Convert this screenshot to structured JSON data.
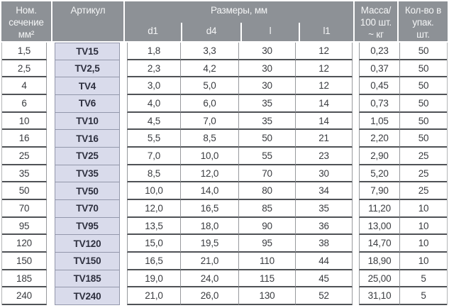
{
  "header": {
    "col_section": "Ном.\nсечение\nмм²",
    "col_article": "Артикул",
    "col_dimensions": "Размеры, мм",
    "sub_d1": "d1",
    "sub_d4": "d4",
    "sub_l": "l",
    "sub_l1": "l1",
    "col_mass": "Масса/\n100 шт.\n~ кг",
    "col_qty": "Кол-во в\nупак.\nшт."
  },
  "colors": {
    "header_bg": "#8d9196",
    "article_column_bg": "#d9dbeb",
    "row_line": "#4f5256"
  },
  "chart_data": {
    "type": "table",
    "columns": [
      "Ном. сечение мм²",
      "Артикул",
      "d1",
      "d4",
      "l",
      "l1",
      "Масса/100 шт. ~ кг",
      "Кол-во в упак. шт."
    ]
  },
  "rows": [
    {
      "section": "1,5",
      "article": "TV15",
      "d1": "1,8",
      "d4": "3,3",
      "l": "30",
      "l1": "12",
      "mass": "0,23",
      "qty": "50"
    },
    {
      "section": "2,5",
      "article": "TV2,5",
      "d1": "2,3",
      "d4": "4,2",
      "l": "30",
      "l1": "12",
      "mass": "0,37",
      "qty": "50"
    },
    {
      "section": "4",
      "article": "TV4",
      "d1": "3,0",
      "d4": "5,0",
      "l": "30",
      "l1": "12",
      "mass": "0,45",
      "qty": "50"
    },
    {
      "section": "6",
      "article": "TV6",
      "d1": "4,0",
      "d4": "6,0",
      "l": "35",
      "l1": "14",
      "mass": "0,73",
      "qty": "50"
    },
    {
      "section": "10",
      "article": "TV10",
      "d1": "4,5",
      "d4": "7,0",
      "l": "35",
      "l1": "14",
      "mass": "1,05",
      "qty": "50"
    },
    {
      "section": "16",
      "article": "TV16",
      "d1": "5,5",
      "d4": "8,5",
      "l": "50",
      "l1": "21",
      "mass": "2,20",
      "qty": "50"
    },
    {
      "section": "25",
      "article": "TV25",
      "d1": "7,0",
      "d4": "10,0",
      "l": "55",
      "l1": "23",
      "mass": "2,90",
      "qty": "25"
    },
    {
      "section": "35",
      "article": "TV35",
      "d1": "8,5",
      "d4": "12,0",
      "l": "70",
      "l1": "30",
      "mass": "5,20",
      "qty": "25"
    },
    {
      "section": "50",
      "article": "TV50",
      "d1": "10,0",
      "d4": "14,0",
      "l": "80",
      "l1": "34",
      "mass": "7,90",
      "qty": "25"
    },
    {
      "section": "70",
      "article": "TV70",
      "d1": "12,0",
      "d4": "16,5",
      "l": "85",
      "l1": "35",
      "mass": "11,20",
      "qty": "10"
    },
    {
      "section": "95",
      "article": "TV95",
      "d1": "13,5",
      "d4": "18,0",
      "l": "90",
      "l1": "36",
      "mass": "13,00",
      "qty": "10"
    },
    {
      "section": "120",
      "article": "TV120",
      "d1": "15,0",
      "d4": "19,5",
      "l": "95",
      "l1": "38",
      "mass": "14,70",
      "qty": "10"
    },
    {
      "section": "150",
      "article": "TV150",
      "d1": "16,5",
      "d4": "21,0",
      "l": "110",
      "l1": "44",
      "mass": "18,90",
      "qty": "10"
    },
    {
      "section": "185",
      "article": "TV185",
      "d1": "19,0",
      "d4": "24,0",
      "l": "115",
      "l1": "45",
      "mass": "25,00",
      "qty": "5"
    },
    {
      "section": "240",
      "article": "TV240",
      "d1": "21,0",
      "d4": "26,0",
      "l": "130",
      "l1": "52",
      "mass": "31,10",
      "qty": "5"
    }
  ]
}
